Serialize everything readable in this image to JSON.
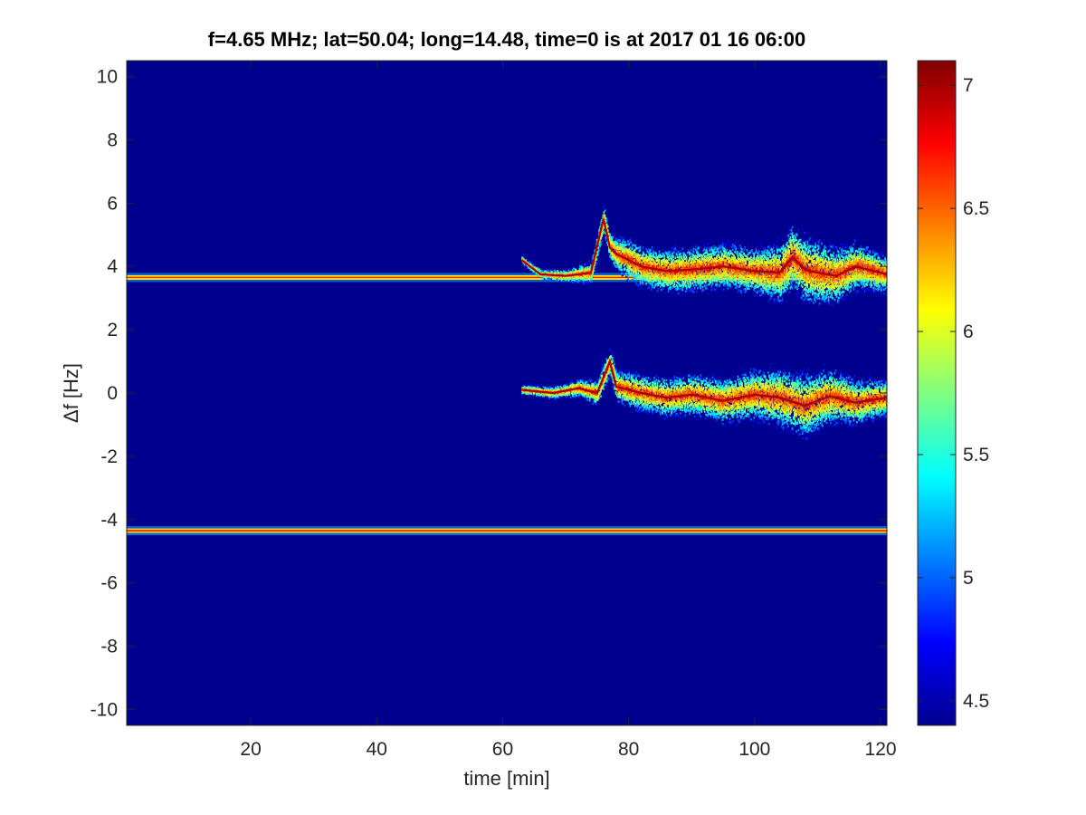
{
  "chart_data": {
    "type": "heatmap",
    "title": "f=4.65 MHz;  lat=50.04; long=14.48, time=0 is at 2017 01 16 06:00",
    "xlabel": "time [min]",
    "ylabel": "Δf [Hz]",
    "xlim": [
      0.3,
      121
    ],
    "ylim": [
      -10.5,
      10.5
    ],
    "x_ticks": [
      20,
      40,
      60,
      80,
      100,
      120
    ],
    "y_ticks": [
      10,
      8,
      6,
      4,
      2,
      0,
      -2,
      -4,
      -6,
      -8,
      -10
    ],
    "grid": false,
    "colormap": "jet",
    "colorbar": {
      "position": "right",
      "clim": [
        4.4,
        7.1
      ],
      "ticks": [
        4.5,
        5,
        5.5,
        6,
        6.5,
        7
      ]
    },
    "background_value": 4.4,
    "features": [
      {
        "name": "",
        "kind": "constant-line",
        "df": 3.65,
        "x_start": 0.3,
        "x_end": 121,
        "value": 6.7
      },
      {
        "name": "",
        "kind": "constant-line",
        "df": -4.35,
        "x_start": 0.3,
        "x_end": 121,
        "value": 6.8
      },
      {
        "name": "",
        "kind": "ridge",
        "value": 7.0,
        "trace": [
          [
            63,
            4.2
          ],
          [
            66,
            3.75
          ],
          [
            70,
            3.7
          ],
          [
            74,
            3.8
          ],
          [
            76,
            5.5
          ],
          [
            77,
            4.6
          ],
          [
            78,
            4.4
          ],
          [
            82,
            4.0
          ],
          [
            86,
            3.85
          ],
          [
            90,
            3.9
          ],
          [
            95,
            4.0
          ],
          [
            100,
            3.85
          ],
          [
            104,
            3.8
          ],
          [
            106,
            4.3
          ],
          [
            108,
            3.9
          ],
          [
            110,
            3.8
          ],
          [
            113,
            3.7
          ],
          [
            116,
            4.0
          ],
          [
            118,
            3.9
          ],
          [
            121,
            3.75
          ]
        ],
        "spread": [
          [
            63,
            0.15
          ],
          [
            70,
            0.25
          ],
          [
            76,
            0.6
          ],
          [
            80,
            0.9
          ],
          [
            90,
            1.0
          ],
          [
            100,
            1.0
          ],
          [
            106,
            1.5
          ],
          [
            110,
            1.4
          ],
          [
            121,
            0.8
          ]
        ]
      },
      {
        "name": "",
        "kind": "ridge",
        "value": 7.0,
        "trace": [
          [
            63,
            0.1
          ],
          [
            68,
            0.0
          ],
          [
            72,
            0.15
          ],
          [
            75,
            0.0
          ],
          [
            77,
            1.0
          ],
          [
            78,
            0.2
          ],
          [
            82,
            0.0
          ],
          [
            86,
            -0.15
          ],
          [
            90,
            -0.05
          ],
          [
            95,
            -0.25
          ],
          [
            100,
            -0.05
          ],
          [
            104,
            -0.15
          ],
          [
            108,
            -0.4
          ],
          [
            112,
            -0.1
          ],
          [
            116,
            -0.3
          ],
          [
            121,
            -0.15
          ]
        ],
        "spread": [
          [
            63,
            0.2
          ],
          [
            70,
            0.3
          ],
          [
            76,
            0.6
          ],
          [
            80,
            0.8
          ],
          [
            90,
            0.9
          ],
          [
            100,
            1.1
          ],
          [
            108,
            1.4
          ],
          [
            112,
            1.2
          ],
          [
            121,
            0.8
          ]
        ]
      }
    ]
  }
}
